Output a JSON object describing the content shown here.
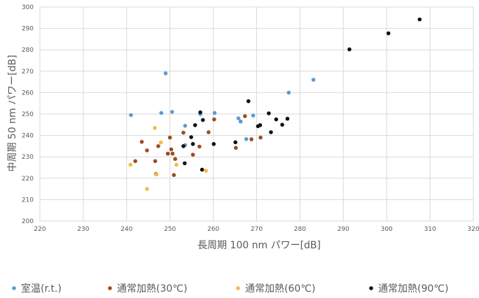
{
  "chart_data": {
    "type": "scatter",
    "title": "",
    "xlabel": "長周期 100 nm パワー[dB]",
    "ylabel": "中周期 50 nm パワー[dB]",
    "xlim": [
      220,
      320
    ],
    "ylim": [
      200,
      300
    ],
    "x_ticks": [
      220,
      230,
      240,
      250,
      260,
      270,
      280,
      290,
      300,
      310,
      320
    ],
    "y_ticks": [
      200,
      210,
      220,
      230,
      240,
      250,
      260,
      270,
      280,
      290,
      300
    ],
    "grid": true,
    "legend_position": "bottom",
    "series": [
      {
        "name": "室温(r.t.)",
        "color": "#5b9bd5",
        "points": [
          [
            241,
            249.5
          ],
          [
            248,
            250.5
          ],
          [
            249,
            269
          ],
          [
            250.5,
            251
          ],
          [
            253.5,
            244.5
          ],
          [
            253.5,
            235.5
          ],
          [
            257,
            250
          ],
          [
            260.3,
            250.5
          ],
          [
            265.8,
            248
          ],
          [
            266.3,
            246.5
          ],
          [
            267.6,
            238.3
          ],
          [
            269.2,
            249.3
          ],
          [
            277.4,
            260
          ],
          [
            283.1,
            266
          ]
        ]
      },
      {
        "name": "通常加熱(30℃)",
        "color": "#9e4b20",
        "points": [
          [
            242,
            228
          ],
          [
            243.5,
            237
          ],
          [
            244.7,
            233
          ],
          [
            246.6,
            228
          ],
          [
            246.8,
            222
          ],
          [
            247.3,
            235
          ],
          [
            249.5,
            231.5
          ],
          [
            250,
            239
          ],
          [
            250.3,
            233.5
          ],
          [
            250.6,
            231.5
          ],
          [
            250.9,
            221.5
          ],
          [
            251.2,
            229
          ],
          [
            253.1,
            241.3
          ],
          [
            255.3,
            231
          ],
          [
            256.8,
            234.8
          ],
          [
            258.9,
            241.5
          ],
          [
            260.2,
            247.5
          ],
          [
            265.2,
            234.2
          ],
          [
            267.3,
            249
          ],
          [
            268.8,
            238.2
          ],
          [
            270.9,
            239
          ]
        ]
      },
      {
        "name": "通常加熱(60℃)",
        "color": "#f6b942",
        "points": [
          [
            240.9,
            226.3
          ],
          [
            244.7,
            215
          ],
          [
            246.5,
            243.5
          ],
          [
            246.9,
            221.8
          ],
          [
            247.9,
            236.7
          ],
          [
            251.5,
            226.3
          ],
          [
            258.3,
            223.5
          ]
        ]
      },
      {
        "name": "通常加熱(90℃)",
        "color": "#111111",
        "points": [
          [
            253.1,
            235
          ],
          [
            253.4,
            227
          ],
          [
            254.9,
            239.2
          ],
          [
            255.3,
            236
          ],
          [
            255.8,
            244.8
          ],
          [
            257,
            250.8
          ],
          [
            257.4,
            224
          ],
          [
            257.6,
            247.2
          ],
          [
            260.1,
            236
          ],
          [
            265.1,
            236.8
          ],
          [
            268.1,
            256
          ],
          [
            270.3,
            244.3
          ],
          [
            270.8,
            244.8
          ],
          [
            272.8,
            250.3
          ],
          [
            273.3,
            241.5
          ],
          [
            274.5,
            247.5
          ],
          [
            275.9,
            245
          ],
          [
            277.1,
            247.8
          ],
          [
            291.4,
            280.2
          ],
          [
            300.4,
            287.7
          ],
          [
            307.6,
            294.2
          ]
        ]
      }
    ]
  }
}
